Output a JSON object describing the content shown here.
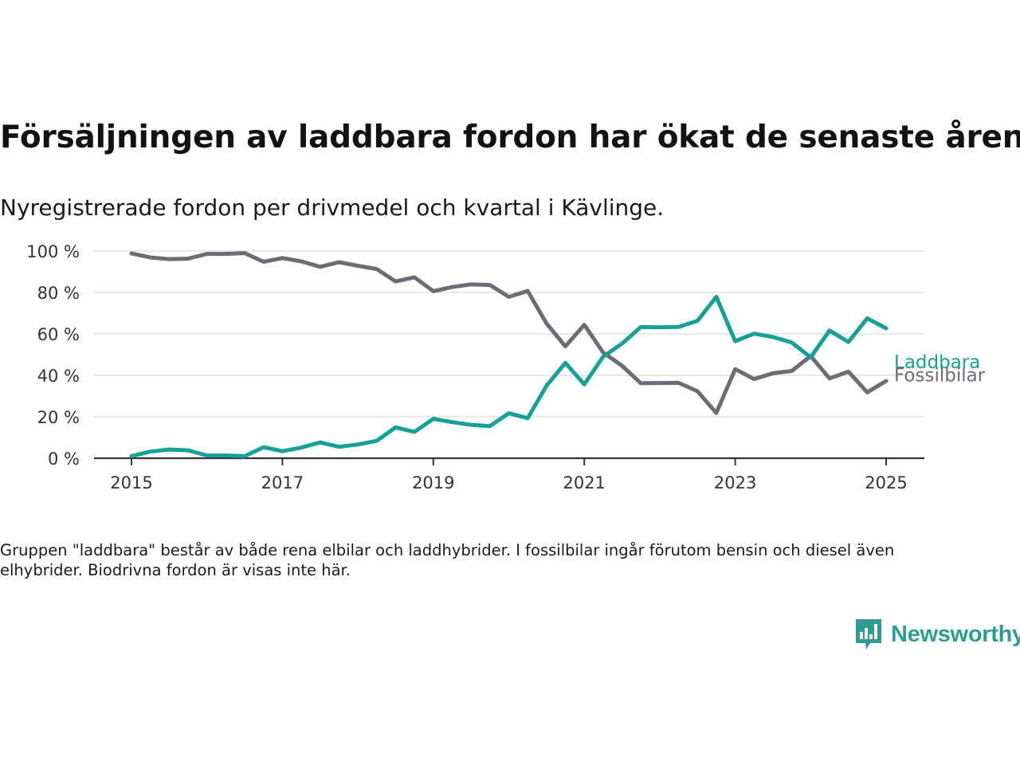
{
  "title": "Försäljningen av laddbara fordon har ökat de senaste åren",
  "subtitle": "Nyregistrerade fordon per drivmedel och kvartal i Kävlinge.",
  "note": "Gruppen \"laddbara\" består av både rena elbilar och laddhybrider. I fossilbilar ingår förutom bensin och diesel även elhybrider. Biodrivna fordon är visas inte här.",
  "brand": {
    "name": "Newsworthy",
    "color": "#2e9c93",
    "icon": "bar-chart-speech-bubble-icon"
  },
  "chart_data": {
    "type": "line",
    "title": "",
    "xlabel": "",
    "ylabel": "",
    "ylim": [
      0,
      100
    ],
    "xlim": [
      2014.75,
      2025.5
    ],
    "y_ticks": [
      {
        "value": 0,
        "label": "0 %"
      },
      {
        "value": 20,
        "label": "20 %"
      },
      {
        "value": 40,
        "label": "40 %"
      },
      {
        "value": 60,
        "label": "60 %"
      },
      {
        "value": 80,
        "label": "80 %"
      },
      {
        "value": 100,
        "label": "100 %"
      }
    ],
    "x_ticks": [
      {
        "value": 2015,
        "label": "2015"
      },
      {
        "value": 2017,
        "label": "2017"
      },
      {
        "value": 2019,
        "label": "2019"
      },
      {
        "value": 2021,
        "label": "2021"
      },
      {
        "value": 2023,
        "label": "2023"
      },
      {
        "value": 2025,
        "label": "2025"
      }
    ],
    "grid": true,
    "legend": "inline-right",
    "x": [
      2015.0,
      2015.25,
      2015.5,
      2015.75,
      2016.0,
      2016.25,
      2016.5,
      2016.75,
      2017.0,
      2017.25,
      2017.5,
      2017.75,
      2018.0,
      2018.25,
      2018.5,
      2018.75,
      2019.0,
      2019.25,
      2019.5,
      2019.75,
      2020.0,
      2020.25,
      2020.5,
      2020.75,
      2021.0,
      2021.25,
      2021.5,
      2021.75,
      2022.0,
      2022.25,
      2022.5,
      2022.75,
      2023.0,
      2023.25,
      2023.5,
      2023.75,
      2024.0,
      2024.25,
      2024.5,
      2024.75,
      2025.0
    ],
    "series": [
      {
        "name": "Laddbara",
        "color": "#16a197",
        "values": [
          1,
          3.2,
          4.2,
          3.8,
          1.3,
          1.3,
          1,
          5.3,
          3.4,
          5.1,
          7.6,
          5.5,
          6.6,
          8.4,
          14.9,
          12.7,
          19,
          17.4,
          16.1,
          15.5,
          21.7,
          19.3,
          35,
          46,
          35.6,
          49,
          55.3,
          63.3,
          63.2,
          63.4,
          66.3,
          77.9,
          56.5,
          60.1,
          58.5,
          55.8,
          48.7,
          61.6,
          56.1,
          67.5,
          62.7
        ]
      },
      {
        "name": "Fossilbilar",
        "color": "#6d6c75",
        "values": [
          98.8,
          96.9,
          96.1,
          96.3,
          98.6,
          98.6,
          99,
          94.8,
          96.6,
          95,
          92.4,
          94.6,
          92.9,
          91.3,
          85.3,
          87.3,
          80.6,
          82.6,
          83.9,
          83.6,
          77.9,
          80.7,
          65,
          54,
          64.4,
          51,
          44.6,
          36.2,
          36.3,
          36.4,
          32.3,
          21.8,
          43,
          38.2,
          41,
          42.1,
          49.3,
          38.5,
          41.8,
          31.8,
          37.3
        ]
      }
    ]
  }
}
